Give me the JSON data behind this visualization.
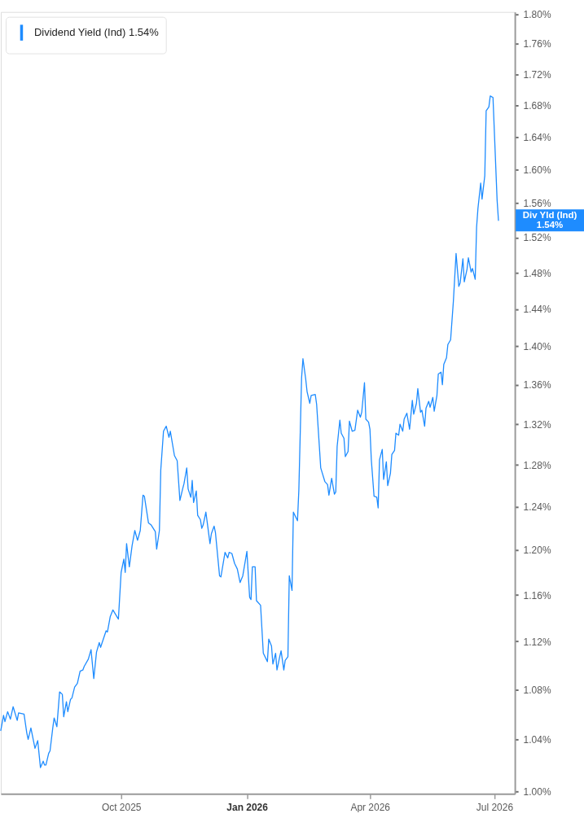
{
  "chart_data": {
    "type": "line",
    "x": [
      "2025-07-05",
      "2025-07-07",
      "2025-07-08",
      "2025-07-10",
      "2025-07-12",
      "2025-07-14",
      "2025-07-17",
      "2025-07-18",
      "2025-07-22",
      "2025-07-24",
      "2025-07-25",
      "2025-07-27",
      "2025-07-30",
      "2025-08-01",
      "2025-08-03",
      "2025-08-05",
      "2025-08-06",
      "2025-08-07",
      "2025-08-09",
      "2025-08-10",
      "2025-08-12",
      "2025-08-13",
      "2025-08-15",
      "2025-08-17",
      "2025-08-19",
      "2025-08-20",
      "2025-08-22",
      "2025-08-23",
      "2025-08-25",
      "2025-08-26",
      "2025-08-28",
      "2025-08-30",
      "2025-09-01",
      "2025-09-03",
      "2025-09-04",
      "2025-09-07",
      "2025-09-09",
      "2025-09-11",
      "2025-09-13",
      "2025-09-15",
      "2025-09-16",
      "2025-09-20",
      "2025-09-21",
      "2025-09-23",
      "2025-09-25",
      "2025-09-29",
      "2025-10-01",
      "2025-10-03",
      "2025-10-04",
      "2025-10-05",
      "2025-10-07",
      "2025-10-09",
      "2025-10-11",
      "2025-10-13",
      "2025-10-15",
      "2025-10-17",
      "2025-10-18",
      "2025-10-21",
      "2025-10-23",
      "2025-10-26",
      "2025-10-27",
      "2025-10-29",
      "2025-10-30",
      "2025-11-01",
      "2025-11-03",
      "2025-11-05",
      "2025-11-06",
      "2025-11-09",
      "2025-11-11",
      "2025-11-13",
      "2025-11-15",
      "2025-11-16",
      "2025-11-18",
      "2025-11-19",
      "2025-11-21",
      "2025-11-22",
      "2025-11-23",
      "2025-11-25",
      "2025-11-26",
      "2025-11-28",
      "2025-11-29",
      "2025-11-30",
      "2025-12-02",
      "2025-12-05",
      "2025-12-06",
      "2025-12-08",
      "2025-12-09",
      "2025-12-12",
      "2025-12-13",
      "2025-12-16",
      "2025-12-18",
      "2025-12-19",
      "2025-12-21",
      "2025-12-23",
      "2025-12-25",
      "2025-12-27",
      "2025-12-29",
      "2026-01-01",
      "2026-01-03",
      "2026-01-04",
      "2026-01-05",
      "2026-01-07",
      "2026-01-08",
      "2026-01-11",
      "2026-01-13",
      "2026-01-16",
      "2026-01-17",
      "2026-01-19",
      "2026-01-20",
      "2026-01-22",
      "2026-01-23",
      "2026-01-25",
      "2026-01-26",
      "2026-01-28",
      "2026-01-29",
      "2026-01-31",
      "2026-02-01",
      "2026-02-03",
      "2026-02-04",
      "2026-02-07",
      "2026-02-08",
      "2026-02-10",
      "2026-02-11",
      "2026-02-13",
      "2026-02-14",
      "2026-02-16",
      "2026-02-17",
      "2026-02-20",
      "2026-02-21",
      "2026-02-23",
      "2026-02-24",
      "2026-02-27",
      "2026-03-01",
      "2026-03-02",
      "2026-03-04",
      "2026-03-06",
      "2026-03-07",
      "2026-03-08",
      "2026-03-10",
      "2026-03-11",
      "2026-03-13",
      "2026-03-14",
      "2026-03-16",
      "2026-03-17",
      "2026-03-19",
      "2026-03-21",
      "2026-03-23",
      "2026-03-25",
      "2026-03-26",
      "2026-03-28",
      "2026-03-29",
      "2026-03-31",
      "2026-04-01",
      "2026-04-02",
      "2026-04-04",
      "2026-04-06",
      "2026-04-07",
      "2026-04-08",
      "2026-04-10",
      "2026-04-11",
      "2026-04-13",
      "2026-04-14",
      "2026-04-16",
      "2026-04-17",
      "2026-04-19",
      "2026-04-20",
      "2026-04-22",
      "2026-04-23",
      "2026-04-25",
      "2026-04-26",
      "2026-04-28",
      "2026-04-30",
      "2026-05-02",
      "2026-05-03",
      "2026-05-05",
      "2026-05-06",
      "2026-05-08",
      "2026-05-09",
      "2026-05-11",
      "2026-05-12",
      "2026-05-14",
      "2026-05-15",
      "2026-05-17",
      "2026-05-18",
      "2026-05-20",
      "2026-05-21",
      "2026-05-23",
      "2026-05-24",
      "2026-05-25",
      "2026-05-27",
      "2026-05-28",
      "2026-05-30",
      "2026-06-01",
      "2026-06-03",
      "2026-06-05",
      "2026-06-06",
      "2026-06-08",
      "2026-06-09",
      "2026-06-11",
      "2026-06-12",
      "2026-06-14",
      "2026-06-15",
      "2026-06-17",
      "2026-06-18",
      "2026-06-19",
      "2026-06-21",
      "2026-06-22",
      "2026-06-24",
      "2026-06-25",
      "2026-06-27",
      "2026-06-28",
      "2026-06-30",
      "2026-07-01",
      "2026-07-03",
      "2026-07-04"
    ],
    "series": [
      {
        "name": "Dividend Yield (Ind) 1.54%",
        "color": "#1e8cff",
        "values": [
          1.047,
          1.059,
          1.054,
          1.062,
          1.056,
          1.066,
          1.055,
          1.061,
          1.06,
          1.045,
          1.04,
          1.049,
          1.033,
          1.039,
          1.018,
          1.023,
          1.02,
          1.02,
          1.029,
          1.031,
          1.049,
          1.057,
          1.05,
          1.078,
          1.076,
          1.058,
          1.07,
          1.062,
          1.072,
          1.073,
          1.082,
          1.085,
          1.095,
          1.096,
          1.099,
          1.105,
          1.113,
          1.089,
          1.111,
          1.119,
          1.115,
          1.129,
          1.128,
          1.141,
          1.147,
          1.139,
          1.18,
          1.192,
          1.18,
          1.206,
          1.185,
          1.204,
          1.218,
          1.209,
          1.218,
          1.251,
          1.25,
          1.225,
          1.223,
          1.217,
          1.201,
          1.218,
          1.275,
          1.313,
          1.318,
          1.307,
          1.313,
          1.289,
          1.284,
          1.246,
          1.257,
          1.262,
          1.277,
          1.257,
          1.249,
          1.265,
          1.244,
          1.255,
          1.232,
          1.228,
          1.22,
          1.223,
          1.235,
          1.206,
          1.215,
          1.222,
          1.216,
          1.177,
          1.176,
          1.198,
          1.193,
          1.198,
          1.197,
          1.188,
          1.183,
          1.171,
          1.177,
          1.199,
          1.158,
          1.156,
          1.185,
          1.185,
          1.155,
          1.151,
          1.11,
          1.103,
          1.122,
          1.116,
          1.101,
          1.11,
          1.096,
          1.107,
          1.112,
          1.096,
          1.104,
          1.107,
          1.177,
          1.164,
          1.235,
          1.227,
          1.256,
          1.367,
          1.387,
          1.366,
          1.353,
          1.341,
          1.349,
          1.35,
          1.34,
          1.298,
          1.277,
          1.264,
          1.261,
          1.251,
          1.267,
          1.252,
          1.254,
          1.298,
          1.324,
          1.311,
          1.306,
          1.288,
          1.293,
          1.323,
          1.313,
          1.314,
          1.334,
          1.327,
          1.332,
          1.362,
          1.325,
          1.322,
          1.315,
          1.285,
          1.25,
          1.249,
          1.239,
          1.285,
          1.295,
          1.266,
          1.283,
          1.26,
          1.272,
          1.29,
          1.294,
          1.311,
          1.309,
          1.32,
          1.313,
          1.325,
          1.331,
          1.315,
          1.344,
          1.33,
          1.341,
          1.356,
          1.332,
          1.334,
          1.318,
          1.336,
          1.343,
          1.337,
          1.347,
          1.333,
          1.349,
          1.371,
          1.373,
          1.36,
          1.381,
          1.388,
          1.402,
          1.407,
          1.448,
          1.502,
          1.465,
          1.469,
          1.496,
          1.47,
          1.484,
          1.497,
          1.481,
          1.485,
          1.473,
          1.532,
          1.554,
          1.584,
          1.565,
          1.593,
          1.673,
          1.678,
          1.692,
          1.69,
          1.647,
          1.564,
          1.54
        ]
      }
    ],
    "xlim": [
      "2025-07-05",
      "2026-07-16"
    ],
    "xticks": [
      {
        "value": "2025-10-01",
        "label": "Oct 2025"
      },
      {
        "value": "2026-01-01",
        "label": "Jan 2026"
      },
      {
        "value": "2026-04-01",
        "label": "Apr 2026"
      },
      {
        "value": "2026-07-01",
        "label": "Jul 2026"
      }
    ],
    "ylim": [
      0.998,
      1.803
    ],
    "yticks": [
      {
        "value": 1.0,
        "label": "1.00%"
      },
      {
        "value": 1.04,
        "label": "1.04%"
      },
      {
        "value": 1.08,
        "label": "1.08%"
      },
      {
        "value": 1.12,
        "label": "1.12%"
      },
      {
        "value": 1.16,
        "label": "1.16%"
      },
      {
        "value": 1.2,
        "label": "1.20%"
      },
      {
        "value": 1.24,
        "label": "1.24%"
      },
      {
        "value": 1.28,
        "label": "1.28%"
      },
      {
        "value": 1.32,
        "label": "1.32%"
      },
      {
        "value": 1.36,
        "label": "1.36%"
      },
      {
        "value": 1.4,
        "label": "1.40%"
      },
      {
        "value": 1.44,
        "label": "1.44%"
      },
      {
        "value": 1.48,
        "label": "1.48%"
      },
      {
        "value": 1.52,
        "label": "1.52%"
      },
      {
        "value": 1.56,
        "label": "1.56%"
      },
      {
        "value": 1.6,
        "label": "1.60%"
      },
      {
        "value": 1.64,
        "label": "1.64%"
      },
      {
        "value": 1.68,
        "label": "1.68%"
      },
      {
        "value": 1.72,
        "label": "1.72%"
      },
      {
        "value": 1.76,
        "label": "1.76%"
      },
      {
        "value": 1.8,
        "label": "1.80%"
      }
    ],
    "log": "y",
    "legend": "top left",
    "annotations": [
      "Div Yld (Ind)\n1.54%"
    ]
  }
}
